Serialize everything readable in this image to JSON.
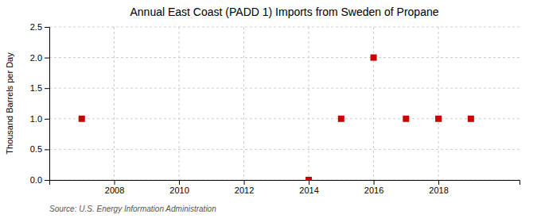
{
  "chart_data": {
    "type": "scatter",
    "title": "Annual East Coast (PADD 1) Imports from Sweden of Propane",
    "ylabel": "Thousand Barrels per Day",
    "source": "Source: U.S. Energy Information Administration",
    "x": [
      2007,
      2014,
      2015,
      2016,
      2017,
      2018,
      2019
    ],
    "values": [
      1.0,
      0.0,
      1.0,
      2.0,
      1.0,
      1.0,
      1.0
    ],
    "color": "#cc0000",
    "marker": "square",
    "xlim": [
      2006.0,
      2020.5
    ],
    "ylim": [
      0.0,
      2.5
    ],
    "xticks": [
      2008,
      2010,
      2012,
      2014,
      2016,
      2018
    ],
    "yticks": [
      {
        "value": 0.0,
        "label": "0.0"
      },
      0.5,
      {
        "value": 1.0,
        "label": "1.0"
      },
      1.5,
      {
        "value": 2.0,
        "label": "2.0"
      },
      2.5
    ],
    "grid": true
  }
}
